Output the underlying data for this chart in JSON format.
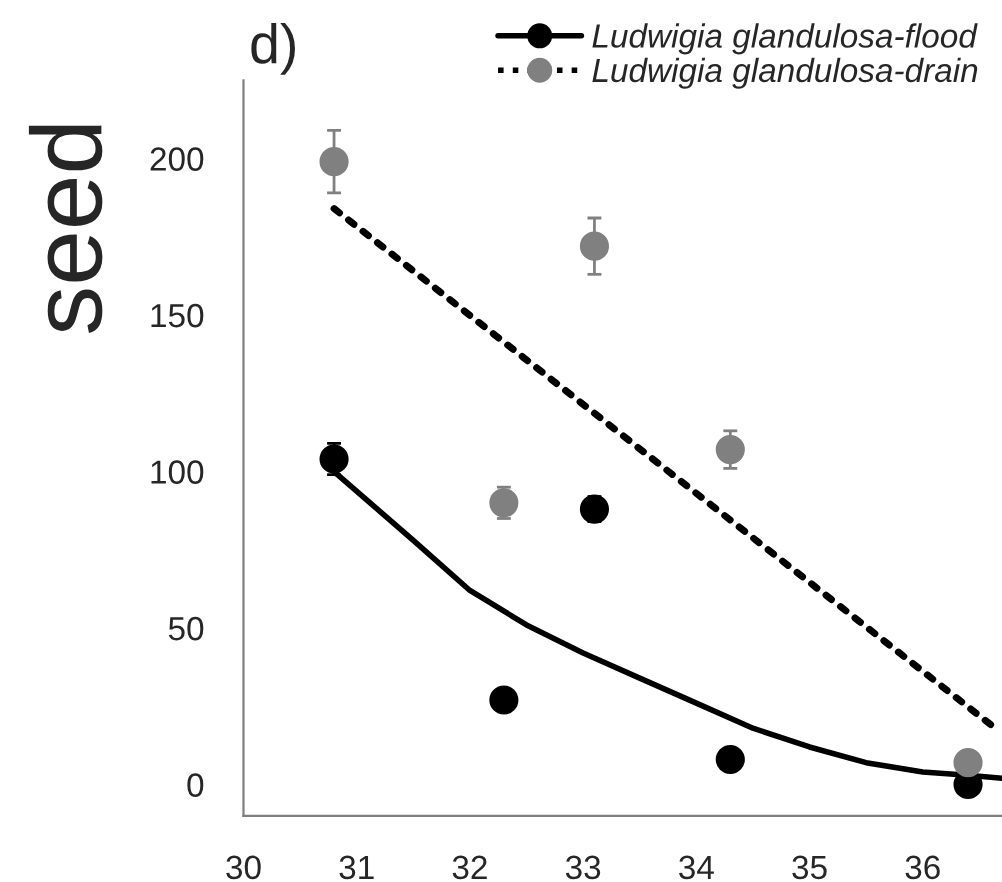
{
  "chart_data": {
    "type": "scatter",
    "ylabel": "seed",
    "annotations": [
      "d)"
    ],
    "xlim": [
      30,
      36.7
    ],
    "xticks": [
      30,
      31,
      32,
      33,
      34,
      35,
      36
    ],
    "ylim": [
      -10,
      225
    ],
    "yticks": [
      0,
      50,
      100,
      150,
      200
    ],
    "grid": false,
    "legend": "top right",
    "series": [
      {
        "name": "Ludwigia glandulosa-flood",
        "color": "#000000",
        "marker": "circle",
        "x": [
          30.8,
          32.3,
          33.1,
          34.3,
          36.4
        ],
        "values": [
          104,
          27,
          88,
          8,
          0
        ],
        "errors": [
          5,
          null,
          4,
          null,
          null
        ]
      },
      {
        "type": "line",
        "color": "#000000",
        "line_style": "solid",
        "x": [
          30.8,
          31.5,
          32,
          32.5,
          33,
          33.5,
          34,
          34.5,
          35,
          35.5,
          36,
          36.4,
          36.7
        ],
        "values": [
          100,
          78,
          62,
          51,
          42,
          34,
          26,
          18,
          12,
          7,
          4,
          3,
          2
        ]
      },
      {
        "name": "Ludwigia glandulosa-drain",
        "color": "#808080",
        "marker": "circle",
        "x": [
          30.8,
          32.3,
          33.1,
          34.3,
          36.4
        ],
        "values": [
          199,
          90,
          172,
          107,
          7
        ],
        "errors": [
          10,
          5,
          9,
          6,
          3
        ]
      },
      {
        "type": "line",
        "color": "#000000",
        "line_style": "dotted",
        "x": [
          30.8,
          36.64
        ],
        "values": [
          184,
          18
        ]
      }
    ]
  }
}
